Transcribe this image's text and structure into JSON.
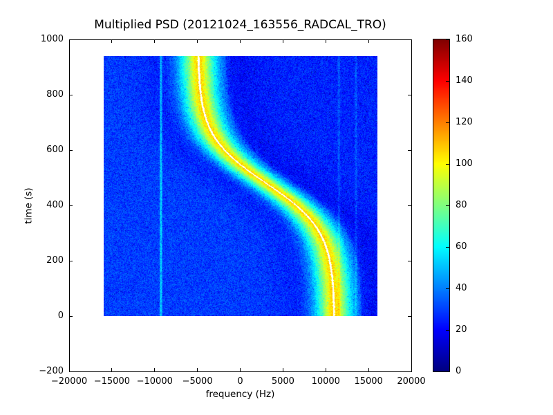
{
  "chart_data": {
    "type": "heatmap",
    "title": "Multiplied PSD (20121024_163556_RADCAL_TRO)",
    "xlabel": "frequency (Hz)",
    "ylabel": "time (s)",
    "xlim": [
      -20000,
      20000
    ],
    "ylim": [
      -200,
      1000
    ],
    "xticks": [
      -20000,
      -15000,
      -10000,
      -5000,
      0,
      5000,
      10000,
      15000,
      20000
    ],
    "xtick_labels": [
      "−20000",
      "−15000",
      "−10000",
      "−5000",
      "0",
      "5000",
      "10000",
      "15000",
      "20000"
    ],
    "yticks": [
      -200,
      0,
      200,
      400,
      600,
      800,
      1000
    ],
    "ytick_labels": [
      "−200",
      "0",
      "200",
      "400",
      "600",
      "800",
      "1000"
    ],
    "grid": false,
    "colormap": "jet",
    "image_extent": {
      "x": [
        -16000,
        16000
      ],
      "t": [
        0,
        940
      ]
    },
    "colorbar": {
      "min": 0,
      "max": 160,
      "ticks": [
        0,
        20,
        40,
        60,
        80,
        100,
        120,
        140,
        160
      ],
      "tick_labels": [
        "0",
        "20",
        "40",
        "60",
        "80",
        "100",
        "120",
        "140",
        "160"
      ],
      "position": "right"
    },
    "signal_track": {
      "shape": "descending-sigmoid",
      "f_start_hz": 11000,
      "f_end_hz": -4900,
      "f_mid_hz": 3000,
      "f_swing_hz": 8000,
      "t_center_s": 480,
      "t_scale_s": 170,
      "ridge_peak": 78,
      "ridge_sigma_hz": 1700,
      "core_peak": 14,
      "core_sigma_hz": 650,
      "core_halfwidth_hz": 110,
      "halo_depth": 15,
      "halo_sigma_hz": 3400
    },
    "artifact_lines_hz": [
      {
        "f": -9300,
        "amp": 26
      },
      {
        "f": 11500,
        "amp": 10
      },
      {
        "f": 13500,
        "amp": 9
      }
    ],
    "noise": {
      "base": 22,
      "spread": 16,
      "dark_speckle_prob": 0.05,
      "dark_speckle_depth": 14
    },
    "background_level": 30,
    "accent_colors": {
      "background_blue": "#1a3cff",
      "ridge_core": "#ffffff"
    }
  }
}
